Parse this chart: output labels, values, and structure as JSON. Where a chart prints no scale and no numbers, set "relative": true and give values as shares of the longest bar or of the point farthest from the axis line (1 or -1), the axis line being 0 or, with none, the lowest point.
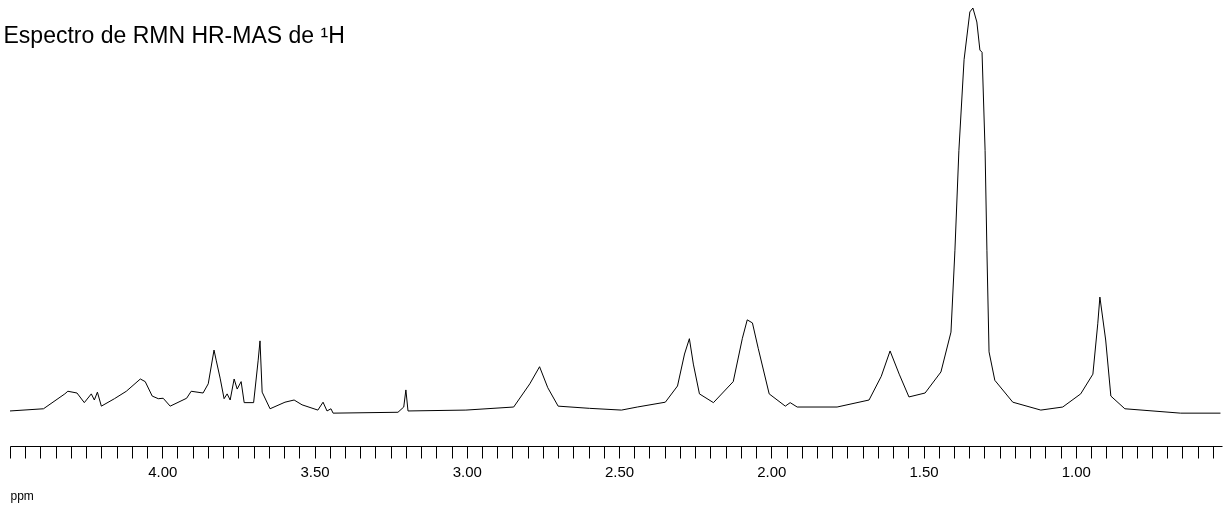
{
  "chart_data": {
    "type": "line",
    "title": "Espectro de RMN HR-MAS de ¹H",
    "xlabel": "ppm",
    "relative": true,
    "color": "#000000",
    "grid": false,
    "marker": "none",
    "line_style": "solid",
    "xlim": [
      4.5,
      0.52
    ],
    "xticks": [
      {
        "value": 4.5,
        "label": null
      },
      {
        "value": 4.45,
        "label": null
      },
      {
        "value": 4.4,
        "label": null
      },
      {
        "value": 4.35,
        "label": null
      },
      {
        "value": 4.3,
        "label": null
      },
      {
        "value": 4.25,
        "label": null
      },
      {
        "value": 4.2,
        "label": null
      },
      {
        "value": 4.15,
        "label": null
      },
      {
        "value": 4.1,
        "label": null
      },
      {
        "value": 4.05,
        "label": null
      },
      {
        "value": 4.0,
        "label": "4.00"
      },
      {
        "value": 3.95,
        "label": null
      },
      {
        "value": 3.9,
        "label": null
      },
      {
        "value": 3.85,
        "label": null
      },
      {
        "value": 3.8,
        "label": null
      },
      {
        "value": 3.75,
        "label": null
      },
      {
        "value": 3.7,
        "label": null
      },
      {
        "value": 3.65,
        "label": null
      },
      {
        "value": 3.6,
        "label": null
      },
      {
        "value": 3.55,
        "label": null
      },
      {
        "value": 3.5,
        "label": "3.50"
      },
      {
        "value": 3.45,
        "label": null
      },
      {
        "value": 3.4,
        "label": null
      },
      {
        "value": 3.35,
        "label": null
      },
      {
        "value": 3.3,
        "label": null
      },
      {
        "value": 3.25,
        "label": null
      },
      {
        "value": 3.2,
        "label": null
      },
      {
        "value": 3.15,
        "label": null
      },
      {
        "value": 3.1,
        "label": null
      },
      {
        "value": 3.05,
        "label": null
      },
      {
        "value": 3.0,
        "label": "3.00"
      },
      {
        "value": 2.95,
        "label": null
      },
      {
        "value": 2.9,
        "label": null
      },
      {
        "value": 2.85,
        "label": null
      },
      {
        "value": 2.8,
        "label": null
      },
      {
        "value": 2.75,
        "label": null
      },
      {
        "value": 2.7,
        "label": null
      },
      {
        "value": 2.65,
        "label": null
      },
      {
        "value": 2.6,
        "label": null
      },
      {
        "value": 2.55,
        "label": null
      },
      {
        "value": 2.5,
        "label": "2.50"
      },
      {
        "value": 2.45,
        "label": null
      },
      {
        "value": 2.4,
        "label": null
      },
      {
        "value": 2.35,
        "label": null
      },
      {
        "value": 2.3,
        "label": null
      },
      {
        "value": 2.25,
        "label": null
      },
      {
        "value": 2.2,
        "label": null
      },
      {
        "value": 2.15,
        "label": null
      },
      {
        "value": 2.1,
        "label": null
      },
      {
        "value": 2.05,
        "label": null
      },
      {
        "value": 2.0,
        "label": "2.00"
      },
      {
        "value": 1.95,
        "label": null
      },
      {
        "value": 1.9,
        "label": null
      },
      {
        "value": 1.85,
        "label": null
      },
      {
        "value": 1.8,
        "label": null
      },
      {
        "value": 1.75,
        "label": null
      },
      {
        "value": 1.7,
        "label": null
      },
      {
        "value": 1.65,
        "label": null
      },
      {
        "value": 1.6,
        "label": null
      },
      {
        "value": 1.55,
        "label": null
      },
      {
        "value": 1.5,
        "label": "1.50"
      },
      {
        "value": 1.45,
        "label": null
      },
      {
        "value": 1.4,
        "label": null
      },
      {
        "value": 1.35,
        "label": null
      },
      {
        "value": 1.3,
        "label": null
      },
      {
        "value": 1.25,
        "label": null
      },
      {
        "value": 1.2,
        "label": null
      },
      {
        "value": 1.15,
        "label": null
      },
      {
        "value": 1.1,
        "label": null
      },
      {
        "value": 1.05,
        "label": null
      },
      {
        "value": 1.0,
        "label": "1.00"
      },
      {
        "value": 0.95,
        "label": null
      },
      {
        "value": 0.9,
        "label": null
      },
      {
        "value": 0.85,
        "label": null
      },
      {
        "value": 0.8,
        "label": null
      },
      {
        "value": 0.75,
        "label": null
      },
      {
        "value": 0.7,
        "label": null
      },
      {
        "value": 0.65,
        "label": null
      },
      {
        "value": 0.6,
        "label": null
      },
      {
        "value": 0.55,
        "label": null
      }
    ],
    "x": [
      4.5,
      4.39,
      4.32,
      4.31,
      4.28,
      4.256,
      4.233,
      4.223,
      4.213,
      4.2,
      4.157,
      4.118,
      4.072,
      4.056,
      4.033,
      4.013,
      3.997,
      3.974,
      3.92,
      3.905,
      3.866,
      3.849,
      3.83,
      3.823,
      3.81,
      3.797,
      3.787,
      3.777,
      3.764,
      3.754,
      3.741,
      3.731,
      3.7,
      3.685,
      3.679,
      3.672,
      3.646,
      3.597,
      3.567,
      3.541,
      3.489,
      3.472,
      3.459,
      3.446,
      3.439,
      3.226,
      3.207,
      3.2,
      3.193,
      3.003,
      2.846,
      2.793,
      2.761,
      2.734,
      2.7,
      2.597,
      2.492,
      2.44,
      2.348,
      2.308,
      2.285,
      2.269,
      2.256,
      2.236,
      2.19,
      2.125,
      2.095,
      2.079,
      2.062,
      2.043,
      2.007,
      1.954,
      1.938,
      1.915,
      1.784,
      1.679,
      1.639,
      1.61,
      1.58,
      1.548,
      1.495,
      1.443,
      1.41,
      1.397,
      1.384,
      1.367,
      1.348,
      1.338,
      1.325,
      1.315,
      1.308,
      1.298,
      1.292,
      1.285,
      1.266,
      1.207,
      1.115,
      1.043,
      0.984,
      0.944,
      0.928,
      0.921,
      0.902,
      0.885,
      0.839,
      0.656,
      0.525
    ],
    "values": [
      0.08,
      0.085,
      0.119,
      0.125,
      0.121,
      0.099,
      0.119,
      0.105,
      0.123,
      0.091,
      0.108,
      0.125,
      0.153,
      0.147,
      0.114,
      0.108,
      0.109,
      0.091,
      0.109,
      0.125,
      0.121,
      0.142,
      0.219,
      0.196,
      0.155,
      0.108,
      0.119,
      0.105,
      0.153,
      0.13,
      0.147,
      0.099,
      0.099,
      0.196,
      0.24,
      0.123,
      0.085,
      0.1,
      0.105,
      0.094,
      0.082,
      0.1,
      0.08,
      0.085,
      0.075,
      0.077,
      0.089,
      0.128,
      0.08,
      0.082,
      0.089,
      0.142,
      0.181,
      0.133,
      0.091,
      0.086,
      0.082,
      0.089,
      0.1,
      0.137,
      0.21,
      0.245,
      0.187,
      0.119,
      0.099,
      0.147,
      0.246,
      0.288,
      0.281,
      0.223,
      0.119,
      0.091,
      0.099,
      0.089,
      0.089,
      0.105,
      0.159,
      0.217,
      0.164,
      0.112,
      0.121,
      0.169,
      0.26,
      0.447,
      0.675,
      0.882,
      0.991,
      1.0,
      0.968,
      0.904,
      0.899,
      0.675,
      0.447,
      0.215,
      0.15,
      0.1,
      0.082,
      0.089,
      0.119,
      0.164,
      0.279,
      0.34,
      0.242,
      0.114,
      0.085,
      0.075,
      0.075
    ]
  }
}
